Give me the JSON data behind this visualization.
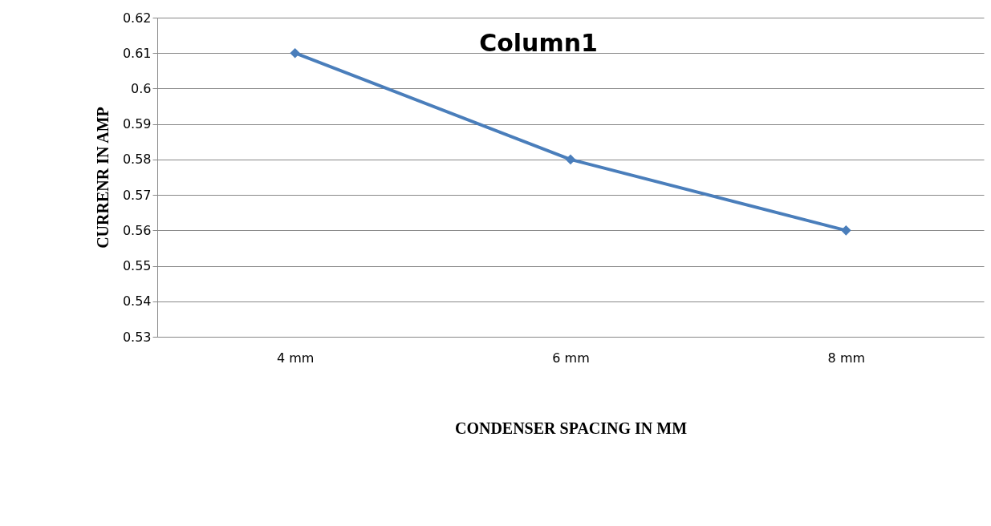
{
  "chart_data": {
    "type": "line",
    "title": "Column1",
    "xlabel": "CONDENSER SPACING IN MM",
    "ylabel": "CURRENR IN AMP",
    "categories": [
      "4 mm",
      "6 mm",
      "8 mm"
    ],
    "series": [
      {
        "color": "#4a7ebb",
        "values": [
          0.61,
          0.58,
          0.56
        ]
      }
    ],
    "ylim": [
      0.53,
      0.62
    ],
    "yticks": [
      0.53,
      0.54,
      0.55,
      0.56,
      0.57,
      0.58,
      0.59,
      0.6,
      0.61,
      0.62
    ],
    "grid": "y",
    "marker": "diamond",
    "line_style": "solid"
  }
}
